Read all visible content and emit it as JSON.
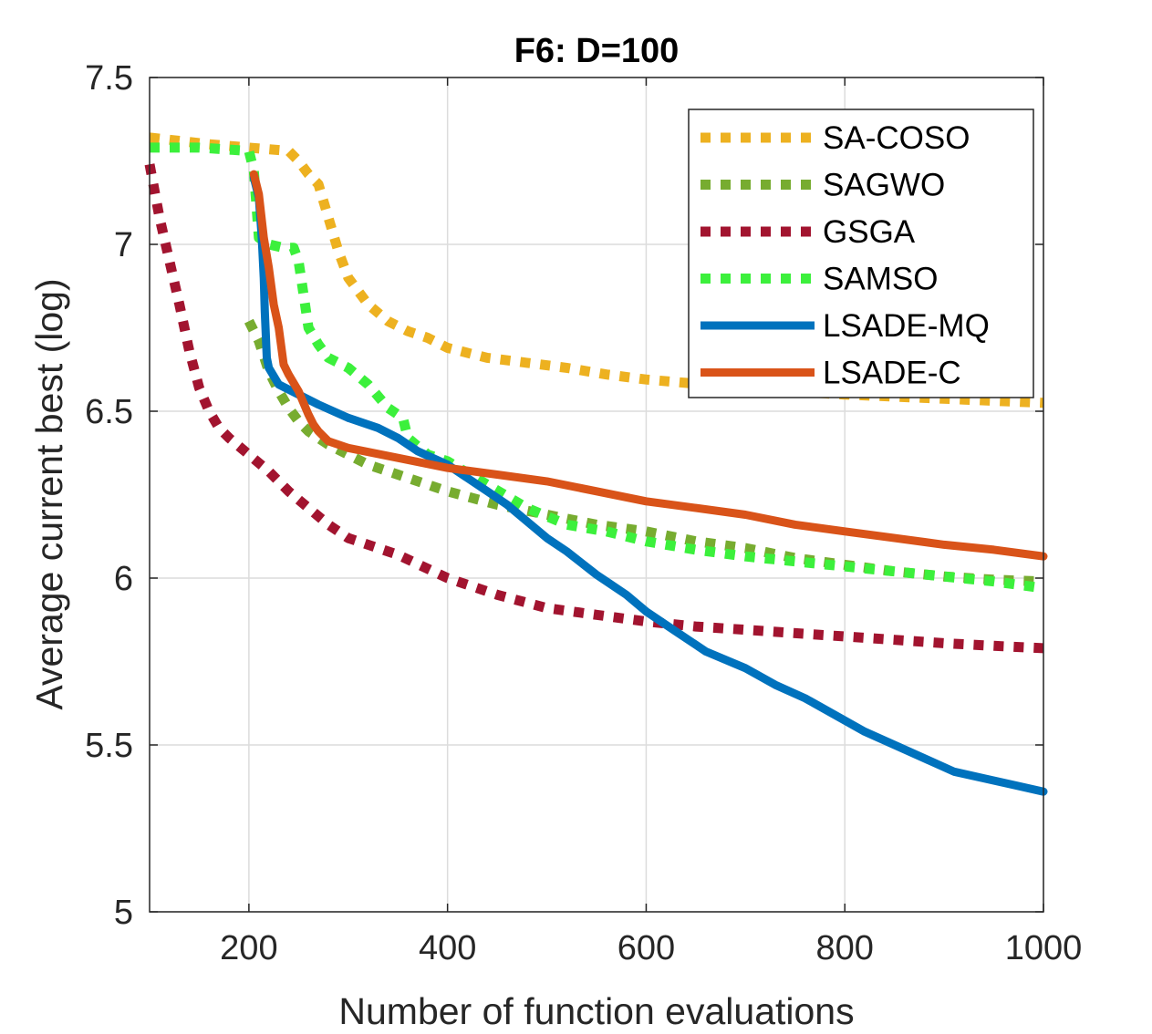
{
  "chart_data": {
    "type": "line",
    "title": "F6: D=100",
    "xlabel": "Number of function evaluations",
    "ylabel": "Average current best (log)",
    "xlim": [
      100,
      1000
    ],
    "ylim": [
      5,
      7.5
    ],
    "xticks": [
      200,
      400,
      600,
      800,
      1000
    ],
    "xtick_labels": [
      "200",
      "400",
      "600",
      "800",
      "1000"
    ],
    "yticks": [
      5,
      5.5,
      6,
      6.5,
      7,
      7.5
    ],
    "ytick_labels": [
      "5",
      "5.5",
      "6",
      "6.5",
      "7",
      "7.5"
    ],
    "grid": true,
    "legend_position": "top-right",
    "series": [
      {
        "name": "SA-COSO",
        "color": "#EDB120",
        "style": "dotted",
        "x": [
          100,
          130,
          160,
          200,
          240,
          250,
          260,
          270,
          280,
          290,
          300,
          320,
          340,
          360,
          380,
          400,
          440,
          480,
          520,
          560,
          600,
          640,
          680,
          720,
          760,
          800,
          840,
          880,
          920,
          960,
          1000
        ],
        "y": [
          7.32,
          7.31,
          7.3,
          7.29,
          7.28,
          7.25,
          7.21,
          7.18,
          7.08,
          6.98,
          6.9,
          6.82,
          6.77,
          6.74,
          6.72,
          6.69,
          6.66,
          6.645,
          6.63,
          6.61,
          6.595,
          6.585,
          6.575,
          6.565,
          6.557,
          6.55,
          6.545,
          6.54,
          6.535,
          6.53,
          6.525
        ]
      },
      {
        "name": "SAGWO",
        "color": "#77AC30",
        "style": "dotted",
        "x": [
          200,
          210,
          220,
          230,
          240,
          250,
          260,
          270,
          280,
          300,
          320,
          350,
          400,
          450,
          500,
          550,
          600,
          650,
          700,
          750,
          800,
          850,
          900,
          950,
          1000
        ],
        "y": [
          6.77,
          6.71,
          6.62,
          6.56,
          6.51,
          6.47,
          6.44,
          6.42,
          6.4,
          6.37,
          6.34,
          6.31,
          6.26,
          6.22,
          6.19,
          6.16,
          6.14,
          6.11,
          6.09,
          6.06,
          6.04,
          6.02,
          6.005,
          5.995,
          5.99
        ]
      },
      {
        "name": "GSGA",
        "color": "#A2142F",
        "style": "dotted",
        "x": [
          100,
          110,
          120,
          130,
          140,
          150,
          160,
          170,
          180,
          200,
          220,
          240,
          260,
          280,
          300,
          350,
          400,
          450,
          500,
          550,
          600,
          650,
          700,
          750,
          800,
          850,
          900,
          950,
          1000
        ],
        "y": [
          7.24,
          7.08,
          6.95,
          6.82,
          6.68,
          6.57,
          6.5,
          6.45,
          6.42,
          6.37,
          6.32,
          6.26,
          6.21,
          6.16,
          6.12,
          6.07,
          6.0,
          5.95,
          5.91,
          5.89,
          5.87,
          5.855,
          5.845,
          5.835,
          5.825,
          5.815,
          5.805,
          5.797,
          5.79
        ]
      },
      {
        "name": "SAMSO",
        "color": "#3CF03C",
        "style": "dotted",
        "x": [
          100,
          150,
          200,
          205,
          210,
          220,
          235,
          245,
          250,
          255,
          260,
          270,
          280,
          300,
          320,
          340,
          355,
          360,
          380,
          400,
          440,
          480,
          520,
          560,
          600,
          650,
          700,
          750,
          800,
          850,
          900,
          950,
          1000
        ],
        "y": [
          7.29,
          7.29,
          7.28,
          7.22,
          7.02,
          7.0,
          6.99,
          6.99,
          6.95,
          6.85,
          6.75,
          6.7,
          6.66,
          6.63,
          6.58,
          6.51,
          6.48,
          6.42,
          6.37,
          6.35,
          6.28,
          6.21,
          6.16,
          6.14,
          6.11,
          6.085,
          6.065,
          6.05,
          6.035,
          6.02,
          6.005,
          5.99,
          5.97
        ]
      },
      {
        "name": "LSADE-MQ",
        "color": "#0072BD",
        "style": "solid",
        "x": [
          205,
          210,
          213,
          215,
          216,
          218,
          220,
          230,
          250,
          270,
          300,
          330,
          350,
          370,
          400,
          420,
          440,
          460,
          480,
          500,
          520,
          550,
          580,
          600,
          630,
          660,
          700,
          730,
          760,
          790,
          820,
          850,
          880,
          910,
          940,
          970,
          1000
        ],
        "y": [
          7.2,
          7.14,
          7.02,
          6.9,
          6.8,
          6.66,
          6.63,
          6.58,
          6.55,
          6.52,
          6.48,
          6.45,
          6.42,
          6.38,
          6.34,
          6.3,
          6.26,
          6.22,
          6.17,
          6.12,
          6.08,
          6.01,
          5.95,
          5.9,
          5.84,
          5.78,
          5.73,
          5.68,
          5.64,
          5.59,
          5.54,
          5.5,
          5.46,
          5.42,
          5.4,
          5.38,
          5.36
        ]
      },
      {
        "name": "LSADE-C",
        "color": "#D95319",
        "style": "solid",
        "x": [
          205,
          210,
          215,
          220,
          225,
          230,
          235,
          240,
          250,
          260,
          265,
          270,
          280,
          300,
          350,
          400,
          450,
          500,
          550,
          600,
          650,
          700,
          750,
          800,
          850,
          900,
          950,
          1000
        ],
        "y": [
          7.21,
          7.15,
          7.02,
          6.93,
          6.82,
          6.75,
          6.64,
          6.61,
          6.56,
          6.49,
          6.46,
          6.44,
          6.41,
          6.39,
          6.36,
          6.33,
          6.31,
          6.29,
          6.26,
          6.23,
          6.21,
          6.19,
          6.16,
          6.14,
          6.12,
          6.1,
          6.085,
          6.065
        ]
      }
    ]
  }
}
